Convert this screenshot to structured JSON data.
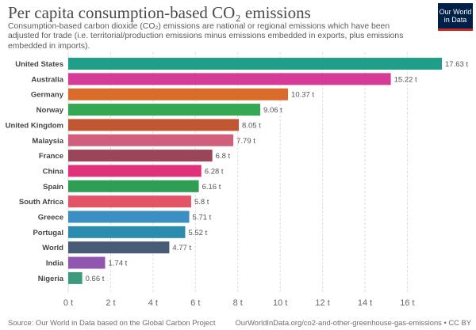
{
  "header": {
    "title": "Per capita consumption-based CO₂ emissions",
    "subtitle": "Consumption-based carbon dioxide (CO₂) emissions are national or regional emissions which have been adjusted for trade (i.e. territorial/production emissions minus emissions embedded in exports, plus emissions embedded in imports).",
    "logo_line1": "Our World",
    "logo_line2": "in Data"
  },
  "footer": {
    "source": "Source: Our World in Data based on the Global Carbon Project",
    "url": "OurWorldInData.org/co2-and-other-greenhouse-gas-emissions • CC BY"
  },
  "chart_data": {
    "type": "bar",
    "orientation": "horizontal",
    "categories": [
      "United States",
      "Australia",
      "Germany",
      "Norway",
      "United Kingdom",
      "Malaysia",
      "France",
      "China",
      "Spain",
      "South Africa",
      "Greece",
      "Portugal",
      "World",
      "India",
      "Nigeria"
    ],
    "values": [
      17.63,
      15.22,
      10.37,
      9.06,
      8.05,
      7.79,
      6.8,
      6.28,
      6.16,
      5.8,
      5.71,
      5.52,
      4.77,
      1.74,
      0.66
    ],
    "value_labels": [
      "17.63 t",
      "15.22 t",
      "10.37 t",
      "9.06 t",
      "8.05 t",
      "7.79 t",
      "6.8 t",
      "6.28 t",
      "6.16 t",
      "5.8 t",
      "5.71 t",
      "5.52 t",
      "4.77 t",
      "1.74 t",
      "0.66 t"
    ],
    "colors": [
      "#1f9e89",
      "#d63b97",
      "#d96c2b",
      "#34a853",
      "#c15633",
      "#cf5f7d",
      "#9a4658",
      "#e0317a",
      "#2e9e54",
      "#e35566",
      "#3b8fc2",
      "#2a8db0",
      "#4a5b78",
      "#9056b0",
      "#3e9a7e"
    ],
    "xticks": [
      0,
      2,
      4,
      6,
      8,
      10,
      12,
      14,
      16
    ],
    "xtick_labels": [
      "0 t",
      "2 t",
      "4 t",
      "6 t",
      "8 t",
      "10 t",
      "12 t",
      "14 t",
      "16 t"
    ],
    "xlim": [
      0,
      17.63
    ],
    "grid": true
  }
}
